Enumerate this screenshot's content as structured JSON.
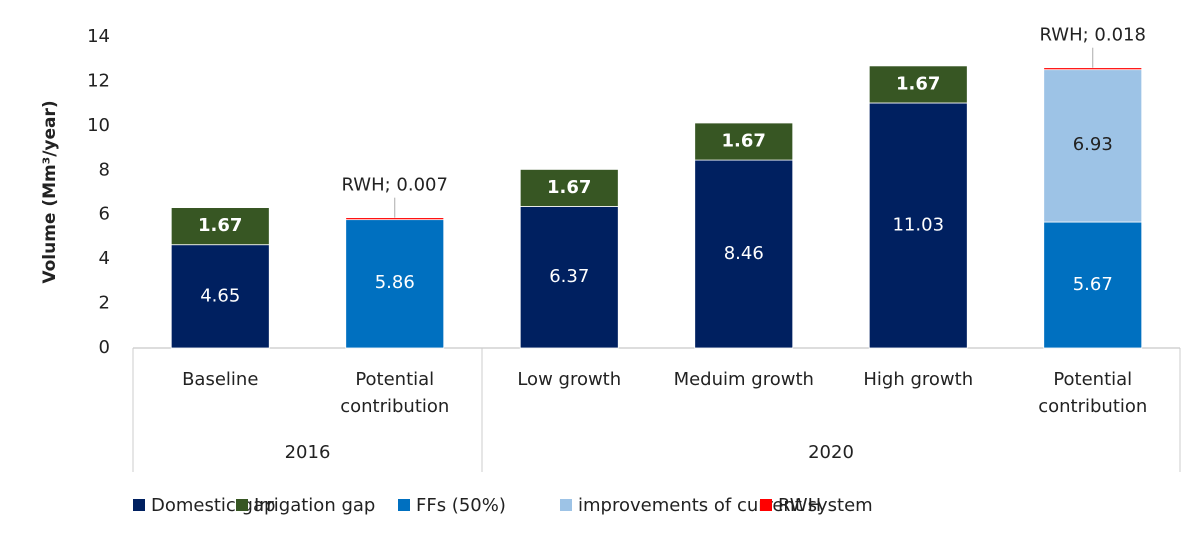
{
  "chart_data": {
    "type": "stacked_bar",
    "y_label": "Volume (Mm³/year)",
    "categories": [
      "Baseline",
      "Potential contribution",
      "Low growth",
      "Meduim growth",
      "High growth",
      "Potential contribution"
    ],
    "x_groups": [
      {
        "label": "2016",
        "count": 2
      },
      {
        "label": "2020",
        "count": 4
      }
    ],
    "series": [
      {
        "name": "Domestic gap",
        "color": "#002060",
        "label_color": "#ffffff",
        "values": [
          4.65,
          null,
          6.37,
          8.46,
          11.03,
          null
        ]
      },
      {
        "name": "Irrigation gap",
        "color": "#375623",
        "label_color": "#ffffff",
        "values": [
          1.67,
          null,
          1.67,
          1.67,
          1.67,
          null
        ]
      },
      {
        "name": "FFs (50%)",
        "color": "#0070c0",
        "label_color": "#ffffff",
        "values": [
          null,
          5.86,
          null,
          null,
          null,
          5.67
        ]
      },
      {
        "name": "improvements of current system",
        "color": "#9dc3e6",
        "label_color": "#222222",
        "values": [
          null,
          null,
          null,
          null,
          null,
          6.93
        ]
      },
      {
        "name": "RWH",
        "color": "#ff0000",
        "label_color": "#222222",
        "values": [
          null,
          0.007,
          null,
          null,
          null,
          0.018
        ],
        "value_labels": [
          null,
          "RWH; 0.007",
          null,
          null,
          null,
          "RWH; 0.018"
        ]
      }
    ],
    "ylim": [
      0,
      14
    ],
    "yticks": [
      0,
      2,
      4,
      6,
      8,
      10,
      12,
      14
    ],
    "grid": false,
    "legend": "bottom"
  }
}
